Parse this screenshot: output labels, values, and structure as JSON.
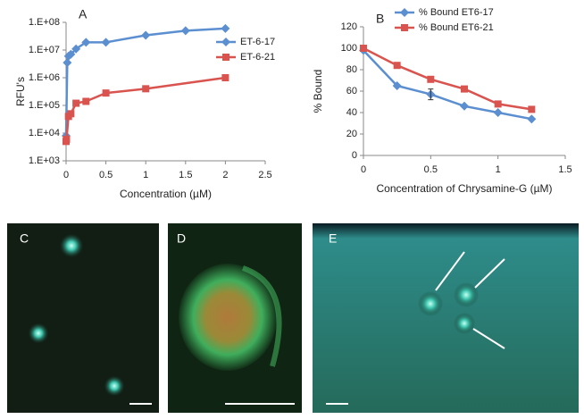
{
  "chart_data": [
    {
      "type": "line",
      "label": "A",
      "log_y": true,
      "legend": "right",
      "xlabel": "Concentration (µM)",
      "ylabel": "RFU's",
      "xlim": [
        0,
        2.5
      ],
      "xticks": [
        0,
        0.5,
        1,
        1.5,
        2,
        2.5
      ],
      "ylim": [
        1000,
        100000000
      ],
      "yticks": [
        {
          "value": 1000,
          "label": "1.E+03"
        },
        {
          "value": 10000,
          "label": "1.E+04"
        },
        {
          "value": 100000,
          "label": "1.E+05"
        },
        {
          "value": 1000000,
          "label": "1.E+06"
        },
        {
          "value": 10000000,
          "label": "1.E+07"
        },
        {
          "value": 100000000,
          "label": "1.E+08"
        }
      ],
      "series": [
        {
          "name": "ET-6-17",
          "color": "#5b8fd0",
          "marker": "diamond",
          "x": [
            0,
            0.015,
            0.03,
            0.06,
            0.125,
            0.25,
            0.5,
            1,
            1.5,
            2
          ],
          "values": [
            8000,
            3500000,
            6000000,
            7000000,
            11000000,
            19000000,
            19000000,
            34000000,
            50000000,
            60000000
          ]
        },
        {
          "name": "ET-6-21",
          "color": "#d9534f",
          "marker": "square",
          "x": [
            0,
            0.005,
            0.03,
            0.06,
            0.125,
            0.25,
            0.5,
            1,
            2
          ],
          "values": [
            5000,
            6000,
            40000,
            50000,
            120000,
            140000,
            280000,
            400000,
            1000000
          ]
        }
      ]
    },
    {
      "type": "line",
      "label": "B",
      "log_y": false,
      "legend": "top",
      "xlabel": "Concentration of Chrysamine-G (µM)",
      "ylabel": "% Bound",
      "xlim": [
        0,
        1.5
      ],
      "xticks": [
        0,
        0.5,
        1,
        1.5
      ],
      "ylim": [
        0,
        120
      ],
      "yticks": [
        0,
        20,
        40,
        60,
        80,
        100,
        120
      ],
      "series": [
        {
          "name": "% Bound ET6-17",
          "color": "#5b8fd0",
          "marker": "diamond",
          "x": [
            0,
            0.25,
            0.5,
            0.75,
            1,
            1.25
          ],
          "values": [
            98,
            65,
            57,
            46,
            40,
            34
          ],
          "errors": [
            null,
            null,
            5,
            null,
            null,
            null
          ]
        },
        {
          "name": "% Bound ET6-21",
          "color": "#d9534f",
          "marker": "square",
          "x": [
            0,
            0.25,
            0.5,
            0.75,
            1,
            1.25
          ],
          "values": [
            100,
            84,
            71,
            62,
            48,
            43
          ]
        }
      ]
    }
  ],
  "panels": [
    {
      "label": "C"
    },
    {
      "label": "D"
    },
    {
      "label": "E"
    }
  ]
}
